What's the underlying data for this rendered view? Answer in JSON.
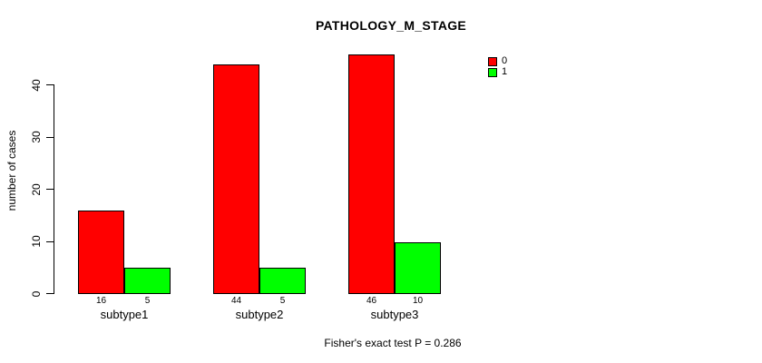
{
  "title": "PATHOLOGY_M_STAGE",
  "ylabel": "number of cases",
  "footnote": "Fisher's exact test P = 0.286",
  "colors": {
    "series0": "#FF0000",
    "series1": "#00FF00",
    "bar_border": "#000000",
    "text": "#000000",
    "background": "#FFFFFF"
  },
  "legend": {
    "items": [
      {
        "label": "0",
        "color": "#FF0000"
      },
      {
        "label": "1",
        "color": "#00FF00"
      }
    ]
  },
  "chart_data": {
    "type": "bar",
    "categories": [
      "subtype1",
      "subtype2",
      "subtype3"
    ],
    "series": [
      {
        "name": "0",
        "color": "#FF0000",
        "values": [
          16,
          44,
          46
        ]
      },
      {
        "name": "1",
        "color": "#00FF00",
        "values": [
          5,
          5,
          10
        ]
      }
    ],
    "title": "PATHOLOGY_M_STAGE",
    "xlabel": "",
    "ylabel": "number of cases",
    "yticks": [
      0,
      10,
      20,
      30,
      40
    ],
    "ylim": [
      0,
      46
    ],
    "bar_value_labels": [
      [
        16,
        5
      ],
      [
        44,
        5
      ],
      [
        46,
        10
      ]
    ],
    "grid": false,
    "legend_position": "top-right",
    "annotation": "Fisher's exact test P = 0.286"
  }
}
